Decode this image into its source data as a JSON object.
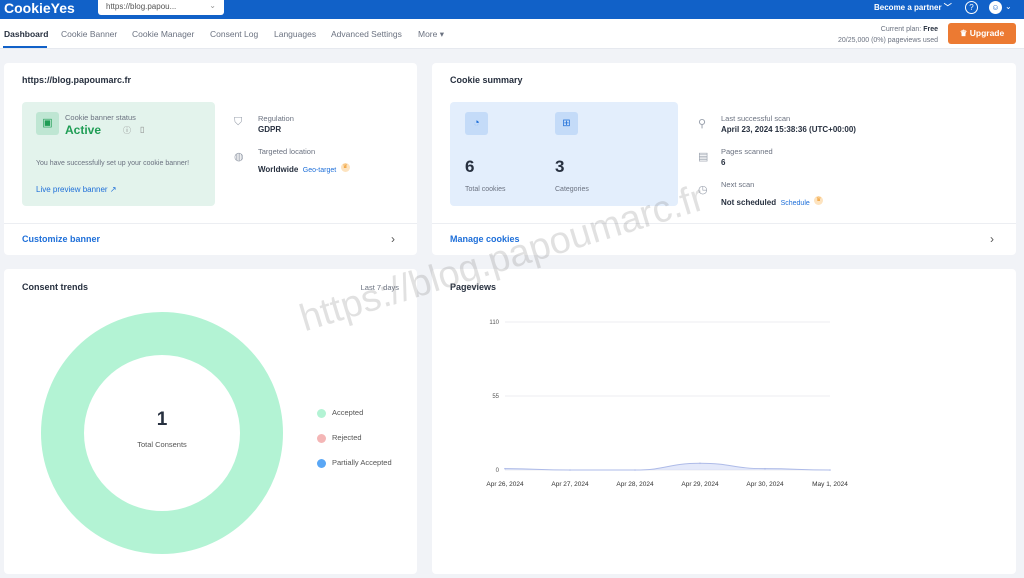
{
  "header": {
    "logo": "CookieYes",
    "site_select": "https://blog.papou...",
    "partner": "Become a partner ﹀",
    "help_icon": "?",
    "avatar_icon": "person-icon"
  },
  "nav": {
    "tabs": [
      "Dashboard",
      "Cookie Banner",
      "Cookie Manager",
      "Consent Log",
      "Languages",
      "Advanced Settings",
      "More ▾"
    ],
    "active": "Dashboard",
    "plan_label": "Current plan:",
    "plan_value": "Free",
    "usage": "20/25,000 (0%) pageviews used",
    "upgrade": "Upgrade"
  },
  "site_card": {
    "title": "https://blog.papoumarc.fr",
    "status_label": "Cookie banner status",
    "status": "Active",
    "message": "You have successfully set up your cookie banner!",
    "preview_link": "Live preview banner",
    "regulation_label": "Regulation",
    "regulation": "GDPR",
    "location_label": "Targeted location",
    "location": "Worldwide",
    "geo_target": "Geo-target",
    "footer_link": "Customize banner",
    "status_color": "#1f9d55"
  },
  "cookie_summary": {
    "title": "Cookie summary",
    "total_cookies": "6",
    "total_cookies_label": "Total cookies",
    "categories": "3",
    "categories_label": "Categories",
    "last_scan_label": "Last successful scan",
    "last_scan": "April 23, 2024 15:38:36  (UTC+00:00)",
    "pages_label": "Pages scanned",
    "pages": "6",
    "next_label": "Next scan",
    "next": "Not scheduled",
    "schedule": "Schedule",
    "footer_link": "Manage cookies"
  },
  "consent_trends": {
    "title": "Consent trends",
    "range": "Last 7 days",
    "total": "1",
    "total_label": "Total Consents",
    "legend": [
      {
        "label": "Accepted",
        "color": "#b3f3d4"
      },
      {
        "label": "Rejected",
        "color": "#f4b6b6"
      },
      {
        "label": "Partially Accepted",
        "color": "#5aa7f5"
      }
    ]
  },
  "watermark": "https://blog.papoumarc.fr",
  "chart_data": {
    "type": "area",
    "title": "Pageviews",
    "categories": [
      "Apr 26, 2024",
      "Apr 27, 2024",
      "Apr 28, 2024",
      "Apr 29, 2024",
      "Apr 30, 2024",
      "May 1, 2024"
    ],
    "values": [
      1,
      0,
      0,
      5,
      1,
      0
    ],
    "ylim": [
      0,
      110
    ],
    "yticks": [
      "0",
      "55",
      "110"
    ],
    "grid": true,
    "color": "#c9d3f5"
  }
}
